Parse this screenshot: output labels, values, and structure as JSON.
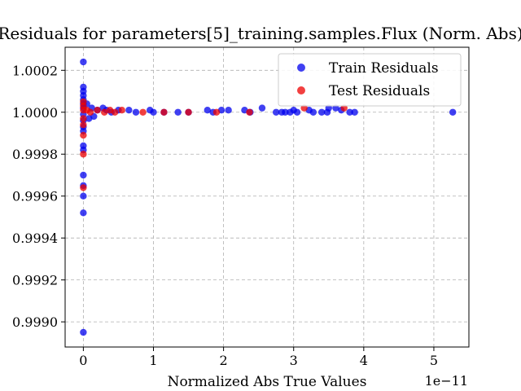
{
  "chart_data": {
    "type": "scatter",
    "title": "Residuals for parameters[5]_training.samples.Flux (Norm. Abs)",
    "xlabel": "Normalized Abs True Values",
    "x_offset_text": "1e−11",
    "ylabel": "",
    "xlim": [
      -0.26,
      5.5
    ],
    "ylim": [
      0.99888,
      1.00031
    ],
    "x_ticks": [
      0,
      1,
      2,
      3,
      4,
      5
    ],
    "x_tick_labels": [
      "0",
      "1",
      "2",
      "3",
      "4",
      "5"
    ],
    "y_ticks": [
      0.999,
      0.9992,
      0.9994,
      0.9996,
      0.9998,
      1.0,
      1.0002
    ],
    "y_tick_labels": [
      "0.9990",
      "0.9992",
      "0.9994",
      "0.9996",
      "0.9998",
      "1.0000",
      "1.0002"
    ],
    "grid": true,
    "legend_position": "top-right",
    "series": [
      {
        "name": "Train Residuals",
        "color": "#0000ee",
        "points": [
          [
            0.0,
            1.00024
          ],
          [
            0.0,
            1.00012
          ],
          [
            0.0,
            1.0001
          ],
          [
            0.0,
            1.00008
          ],
          [
            0.0,
            1.00006
          ],
          [
            0.0,
            1.00004
          ],
          [
            0.0,
            1.00002
          ],
          [
            0.0,
            0.99999
          ],
          [
            0.0,
            0.99996
          ],
          [
            0.0,
            0.99993
          ],
          [
            0.0,
            0.99991
          ],
          [
            0.0,
            0.99984
          ],
          [
            0.0,
            0.99982
          ],
          [
            0.0,
            0.9997
          ],
          [
            0.0,
            0.99965
          ],
          [
            0.0,
            0.9996
          ],
          [
            0.0,
            0.99952
          ],
          [
            0.0,
            0.99895
          ],
          [
            0.05,
            1.00004
          ],
          [
            0.08,
            0.99997
          ],
          [
            0.12,
            1.00002
          ],
          [
            0.15,
            0.99998
          ],
          [
            0.2,
            1.00001
          ],
          [
            0.28,
            1.00002
          ],
          [
            0.33,
            1.00001
          ],
          [
            0.4,
            1.0
          ],
          [
            0.5,
            1.00001
          ],
          [
            0.65,
            1.00001
          ],
          [
            0.75,
            1.0
          ],
          [
            0.95,
            1.00001
          ],
          [
            1.0,
            1.0
          ],
          [
            1.15,
            1.0
          ],
          [
            1.35,
            1.0
          ],
          [
            1.5,
            1.0
          ],
          [
            1.77,
            1.00001
          ],
          [
            1.85,
            1.0
          ],
          [
            1.97,
            1.00001
          ],
          [
            2.07,
            1.00001
          ],
          [
            2.3,
            1.00001
          ],
          [
            2.38,
            1.0
          ],
          [
            2.55,
            1.00002
          ],
          [
            2.75,
            1.0
          ],
          [
            2.83,
            1.0
          ],
          [
            2.88,
            1.0
          ],
          [
            2.95,
            1.0
          ],
          [
            3.0,
            1.00001
          ],
          [
            3.05,
            1.0
          ],
          [
            3.22,
            1.00001
          ],
          [
            3.28,
            1.0
          ],
          [
            3.4,
            1.0
          ],
          [
            3.48,
            1.0
          ],
          [
            3.5,
            1.00002
          ],
          [
            3.6,
            1.00002
          ],
          [
            3.68,
            1.00001
          ],
          [
            3.8,
            1.0
          ],
          [
            3.87,
            1.0
          ],
          [
            5.27,
            1.0
          ]
        ]
      },
      {
        "name": "Test Residuals",
        "color": "#ee0000",
        "points": [
          [
            0.0,
            1.00005
          ],
          [
            0.0,
            1.00003
          ],
          [
            0.0,
            1.00001
          ],
          [
            0.0,
            0.99997
          ],
          [
            0.0,
            0.99994
          ],
          [
            0.0,
            0.99989
          ],
          [
            0.0,
            0.9998
          ],
          [
            0.0,
            0.99964
          ],
          [
            0.05,
            1.00001
          ],
          [
            0.1,
            1.0
          ],
          [
            0.2,
            1.00001
          ],
          [
            0.3,
            1.0
          ],
          [
            0.38,
            1.00001
          ],
          [
            0.45,
            1.0
          ],
          [
            0.55,
            1.00001
          ],
          [
            0.85,
            1.0
          ],
          [
            1.15,
            1.0
          ],
          [
            1.5,
            1.0
          ],
          [
            1.9,
            1.0
          ],
          [
            2.37,
            1.0
          ],
          [
            3.15,
            1.00002
          ],
          [
            3.72,
            1.00002
          ]
        ]
      }
    ]
  }
}
